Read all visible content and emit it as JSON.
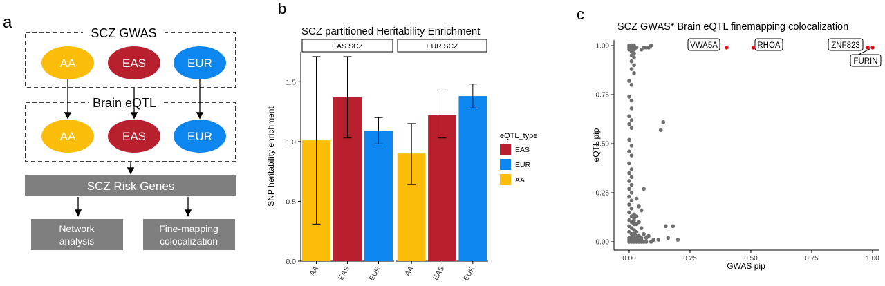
{
  "panel_a": {
    "letter": "a",
    "gwas_title": "SCZ GWAS",
    "eqtl_title": "Brain eQTL",
    "gwas_nodes": [
      "AA",
      "EAS",
      "EUR"
    ],
    "eqtl_nodes": [
      "AA",
      "EAS",
      "EUR"
    ],
    "risk_genes": "SCZ Risk Genes",
    "network_line1": "Network",
    "network_line2": "analysis",
    "finemap_line1": "Fine-mapping",
    "finemap_line2": "colocalization",
    "colors": {
      "AA": "#fbbd0a",
      "EAS": "#b8202e",
      "EUR": "#0d86f0",
      "gray": "#7f7f7f"
    }
  },
  "panel_b": {
    "letter": "b",
    "chart_data": {
      "type": "bar",
      "title": "SCZ partitioned Heritability Enrichment",
      "ylabel": "SNP heritability enrichment",
      "xlabel": "",
      "ylim": [
        0,
        1.75
      ],
      "yticks": [
        "0.0",
        "0.5",
        "1.0",
        "1.5"
      ],
      "facets": [
        {
          "name": "EAS.SCZ",
          "categories": [
            "AA",
            "EAS",
            "EUR"
          ],
          "values": [
            1.01,
            1.37,
            1.09
          ],
          "err_low": [
            0.31,
            1.03,
            0.98
          ],
          "err_high": [
            1.71,
            1.71,
            1.2
          ]
        },
        {
          "name": "EUR.SCZ",
          "categories": [
            "AA",
            "EAS",
            "EUR"
          ],
          "values": [
            0.9,
            1.22,
            1.38
          ],
          "err_low": [
            0.64,
            1.03,
            1.28
          ],
          "err_high": [
            1.15,
            1.43,
            1.48
          ]
        }
      ],
      "legend_title": "eQTL_type",
      "legend": [
        "EAS",
        "EUR",
        "AA"
      ],
      "legend_placement": "right",
      "colors": {
        "AA": "#fbbd0a",
        "EAS": "#b8202e",
        "EUR": "#0d86f0"
      }
    }
  },
  "panel_c": {
    "letter": "c",
    "chart_data": {
      "type": "scatter",
      "title": "SCZ GWAS* Brain eQTL finemapping colocalization",
      "xlabel": "GWAS pip",
      "ylabel": "eQTL pip",
      "xlim": [
        0,
        1
      ],
      "ylim": [
        0,
        1
      ],
      "xticks": [
        "0.00",
        "0.25",
        "0.50",
        "0.75",
        "1.00"
      ],
      "yticks": [
        "0.00",
        "0.25",
        "0.50",
        "0.75",
        "1.00"
      ],
      "point_color": "#6e6e6e",
      "highlight_color": "#e8101b",
      "highlighted": [
        {
          "label": "VWA5A",
          "x": 0.4,
          "y": 0.99
        },
        {
          "label": "RHOA",
          "x": 0.51,
          "y": 0.99
        },
        {
          "label": "ZNF823",
          "x": 0.98,
          "y": 0.99
        },
        {
          "label": "FURIN",
          "x": 1.0,
          "y": 0.99
        }
      ],
      "points": [
        [
          0.0,
          1.0
        ],
        [
          0.01,
          1.0
        ],
        [
          0.02,
          1.0
        ],
        [
          0.0,
          0.99
        ],
        [
          0.01,
          0.99
        ],
        [
          0.02,
          0.99
        ],
        [
          0.03,
          0.99
        ],
        [
          0.0,
          0.98
        ],
        [
          0.01,
          0.98
        ],
        [
          0.02,
          0.98
        ],
        [
          0.06,
          0.99
        ],
        [
          0.07,
          0.99
        ],
        [
          0.08,
          0.99
        ],
        [
          0.09,
          1.0
        ],
        [
          0.05,
          0.98
        ],
        [
          0.01,
          0.97
        ],
        [
          0.02,
          0.96
        ],
        [
          0.01,
          0.95
        ],
        [
          0.02,
          0.94
        ],
        [
          0.01,
          0.92
        ],
        [
          0.02,
          0.9
        ],
        [
          0.01,
          0.88
        ],
        [
          0.02,
          0.86
        ],
        [
          0.0,
          0.82
        ],
        [
          0.01,
          0.8
        ],
        [
          0.0,
          0.74
        ],
        [
          0.01,
          0.72
        ],
        [
          0.01,
          0.68
        ],
        [
          0.0,
          0.64
        ],
        [
          0.01,
          0.62
        ],
        [
          0.0,
          0.6
        ],
        [
          0.01,
          0.58
        ],
        [
          0.0,
          0.52
        ],
        [
          0.01,
          0.49
        ],
        [
          0.0,
          0.46
        ],
        [
          0.01,
          0.44
        ],
        [
          0.0,
          0.4
        ],
        [
          0.01,
          0.37
        ],
        [
          0.0,
          0.35
        ],
        [
          0.01,
          0.33
        ],
        [
          0.0,
          0.31
        ],
        [
          0.01,
          0.29
        ],
        [
          0.0,
          0.27
        ],
        [
          0.01,
          0.25
        ],
        [
          0.0,
          0.23
        ],
        [
          0.01,
          0.21
        ],
        [
          0.0,
          0.19
        ],
        [
          0.01,
          0.17
        ],
        [
          0.0,
          0.15
        ],
        [
          0.01,
          0.13
        ],
        [
          0.0,
          0.11
        ],
        [
          0.01,
          0.1
        ],
        [
          0.02,
          0.09
        ],
        [
          0.0,
          0.08
        ],
        [
          0.01,
          0.07
        ],
        [
          0.02,
          0.06
        ],
        [
          0.03,
          0.05
        ],
        [
          0.0,
          0.05
        ],
        [
          0.01,
          0.04
        ],
        [
          0.02,
          0.04
        ],
        [
          0.03,
          0.03
        ],
        [
          0.04,
          0.03
        ],
        [
          0.0,
          0.02
        ],
        [
          0.01,
          0.02
        ],
        [
          0.02,
          0.02
        ],
        [
          0.03,
          0.02
        ],
        [
          0.05,
          0.02
        ],
        [
          0.0,
          0.01
        ],
        [
          0.01,
          0.01
        ],
        [
          0.02,
          0.01
        ],
        [
          0.03,
          0.01
        ],
        [
          0.04,
          0.01
        ],
        [
          0.05,
          0.01
        ],
        [
          0.0,
          0.0
        ],
        [
          0.01,
          0.0
        ],
        [
          0.02,
          0.0
        ],
        [
          0.03,
          0.0
        ],
        [
          0.04,
          0.0
        ],
        [
          0.05,
          0.0
        ],
        [
          0.06,
          0.0
        ],
        [
          0.07,
          0.0
        ],
        [
          0.02,
          0.12
        ],
        [
          0.03,
          0.09
        ],
        [
          0.02,
          0.11
        ],
        [
          0.04,
          0.1
        ],
        [
          0.05,
          0.07
        ],
        [
          0.03,
          0.13
        ],
        [
          0.06,
          0.04
        ],
        [
          0.07,
          0.02
        ],
        [
          0.08,
          0.03
        ],
        [
          0.1,
          0.01
        ],
        [
          0.06,
          0.27
        ],
        [
          0.03,
          0.22
        ],
        [
          0.04,
          0.18
        ],
        [
          0.05,
          0.16
        ],
        [
          0.02,
          0.14
        ],
        [
          0.13,
          0.57
        ],
        [
          0.14,
          0.61
        ],
        [
          0.15,
          0.08
        ],
        [
          0.18,
          0.08
        ],
        [
          0.16,
          0.02
        ],
        [
          0.2,
          0.01
        ],
        [
          0.12,
          0.01
        ],
        [
          0.09,
          0.0
        ]
      ]
    }
  }
}
